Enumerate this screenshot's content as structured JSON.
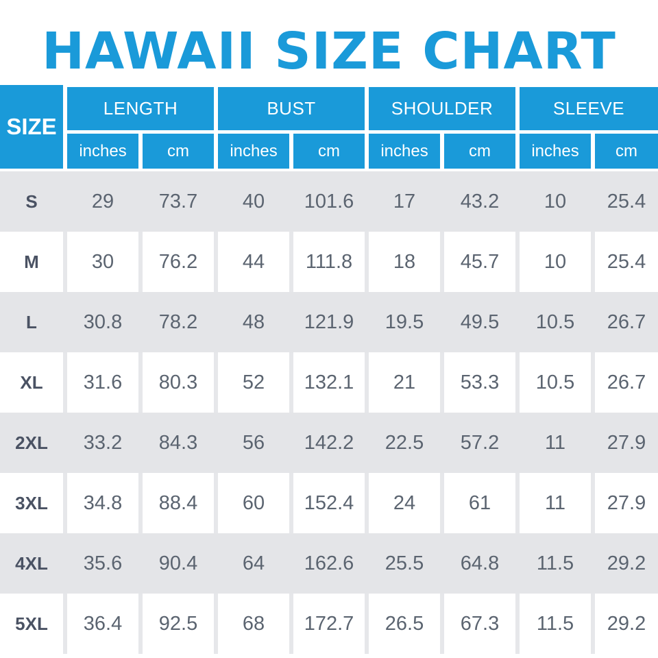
{
  "chart_data": {
    "type": "table",
    "title": "HAWAII SIZE CHART",
    "size_header": "SIZE",
    "groups": [
      {
        "label": "LENGTH",
        "units": [
          "inches",
          "cm"
        ]
      },
      {
        "label": "BUST",
        "units": [
          "inches",
          "cm"
        ]
      },
      {
        "label": "SHOULDER",
        "units": [
          "inches",
          "cm"
        ]
      },
      {
        "label": "SLEEVE",
        "units": [
          "inches",
          "cm"
        ]
      }
    ],
    "rows": [
      {
        "size": "S",
        "values": [
          "29",
          "73.7",
          "40",
          "101.6",
          "17",
          "43.2",
          "10",
          "25.4"
        ]
      },
      {
        "size": "M",
        "values": [
          "30",
          "76.2",
          "44",
          "111.8",
          "18",
          "45.7",
          "10",
          "25.4"
        ]
      },
      {
        "size": "L",
        "values": [
          "30.8",
          "78.2",
          "48",
          "121.9",
          "19.5",
          "49.5",
          "10.5",
          "26.7"
        ]
      },
      {
        "size": "XL",
        "values": [
          "31.6",
          "80.3",
          "52",
          "132.1",
          "21",
          "53.3",
          "10.5",
          "26.7"
        ]
      },
      {
        "size": "2XL",
        "values": [
          "33.2",
          "84.3",
          "56",
          "142.2",
          "22.5",
          "57.2",
          "11",
          "27.9"
        ]
      },
      {
        "size": "3XL",
        "values": [
          "34.8",
          "88.4",
          "60",
          "152.4",
          "24",
          "61",
          "11",
          "27.9"
        ]
      },
      {
        "size": "4XL",
        "values": [
          "35.6",
          "90.4",
          "64",
          "162.6",
          "25.5",
          "64.8",
          "11.5",
          "29.2"
        ]
      },
      {
        "size": "5XL",
        "values": [
          "36.4",
          "92.5",
          "68",
          "172.7",
          "26.5",
          "67.3",
          "11.5",
          "29.2"
        ]
      }
    ]
  },
  "colors": {
    "header_blue": "#1a9ad9",
    "row_gray": "#e4e5e8",
    "row_white": "#ffffff",
    "text_gray": "#5b6470"
  }
}
